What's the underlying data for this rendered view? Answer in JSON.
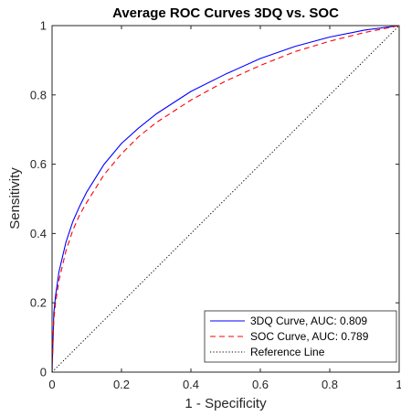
{
  "chart_data": {
    "type": "line",
    "title": "Average ROC Curves 3DQ vs. SOC",
    "xlabel": "1 - Specificity",
    "ylabel": "Sensitivity",
    "xlim": [
      0,
      1
    ],
    "ylim": [
      0,
      1
    ],
    "xticks": [
      "0",
      "0.2",
      "0.4",
      "0.6",
      "0.8",
      "1"
    ],
    "yticks": [
      "0",
      "0.2",
      "0.4",
      "0.6",
      "0.8",
      "1"
    ],
    "grid": false,
    "legend_position": "bottom-right",
    "series": [
      {
        "name": "3DQ Curve, AUC: 0.809",
        "color": "#0000ff",
        "style": "solid",
        "x": [
          0,
          0.005,
          0.01,
          0.02,
          0.04,
          0.06,
          0.08,
          0.1,
          0.15,
          0.2,
          0.25,
          0.3,
          0.4,
          0.5,
          0.6,
          0.7,
          0.8,
          0.9,
          1.0
        ],
        "y": [
          0,
          0.17,
          0.22,
          0.29,
          0.375,
          0.435,
          0.48,
          0.52,
          0.6,
          0.66,
          0.705,
          0.745,
          0.81,
          0.86,
          0.905,
          0.94,
          0.967,
          0.987,
          1.0
        ]
      },
      {
        "name": "SOC Curve, AUC: 0.789",
        "color": "#ff0000",
        "style": "dashed",
        "x": [
          0,
          0.005,
          0.01,
          0.02,
          0.04,
          0.06,
          0.08,
          0.1,
          0.15,
          0.2,
          0.25,
          0.3,
          0.4,
          0.5,
          0.6,
          0.7,
          0.8,
          0.9,
          1.0
        ],
        "y": [
          0,
          0.15,
          0.2,
          0.265,
          0.35,
          0.41,
          0.455,
          0.49,
          0.57,
          0.63,
          0.68,
          0.72,
          0.785,
          0.84,
          0.885,
          0.925,
          0.955,
          0.98,
          1.0
        ]
      },
      {
        "name": "Reference Line",
        "color": "#000000",
        "style": "dotted",
        "x": [
          0,
          1
        ],
        "y": [
          0,
          1
        ]
      }
    ]
  }
}
